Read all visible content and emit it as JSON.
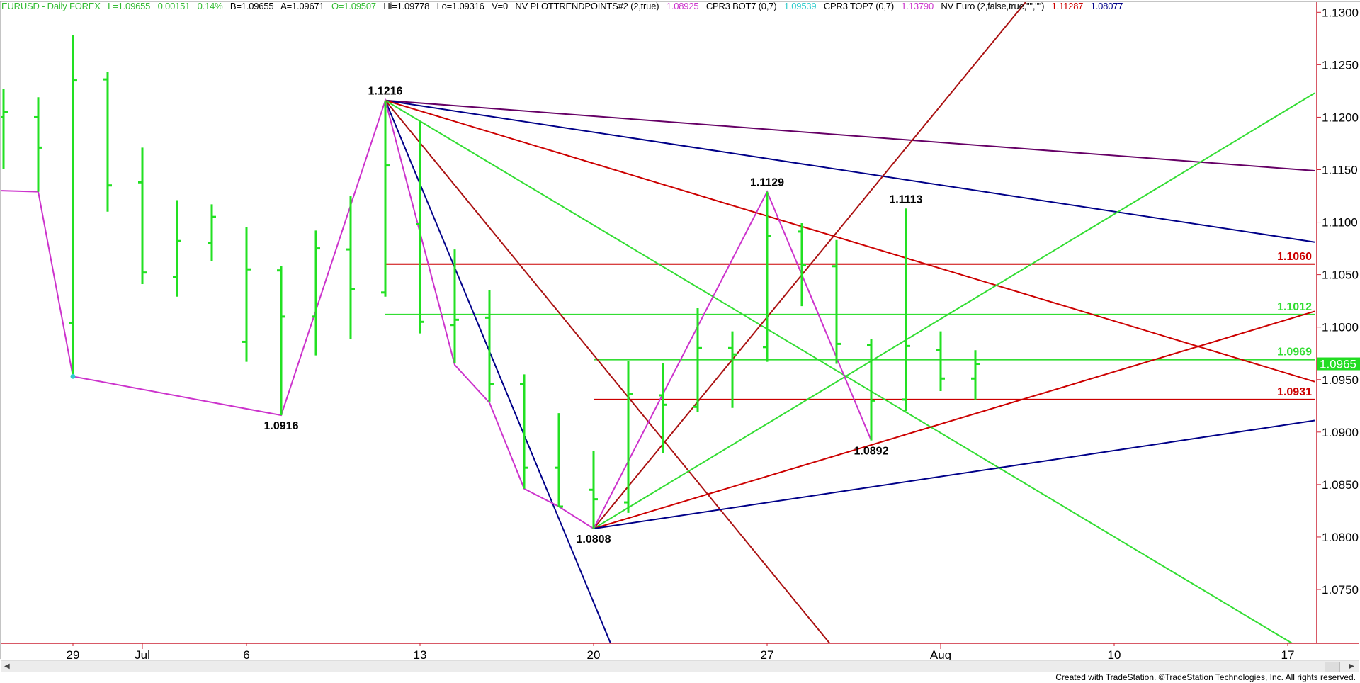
{
  "header": {
    "symbol_info": "EURUSD - Daily  FOREX",
    "last": "L=1.09655",
    "change": "0.00151",
    "change_pct": "0.14%",
    "bid": "B=1.09655",
    "ask": "A=1.09671",
    "open": "O=1.09507",
    "high": "Hi=1.09778",
    "low": "Lo=1.09316",
    "volume": "V=0",
    "ind1_name": "NV  PLOTTRENDPOINTS#2 (2,true)",
    "ind1_value": "1.08925",
    "ind2_name": "CPR3 BOT7 (0,7)",
    "ind2_value": "1.09539",
    "ind3_name": "CPR3 TOP7 (0,7)",
    "ind3_value": "1.13790",
    "ind4_name": "NV Euro (2,false,true,\"\",\"\")",
    "ind4_value1": "1.11287",
    "ind4_value2": "1.08077"
  },
  "colors": {
    "bar": "#22e022",
    "header_green": "#33bb33",
    "magenta": "#cc33cc",
    "cyan": "#33cccc",
    "red": "#cc0000",
    "dark_red": "#aa1111",
    "navy": "#000088",
    "purple": "#660066",
    "green_line": "#33dd33",
    "axis": "#cc2233",
    "price_tag_bg": "#22dd22"
  },
  "chart_data": {
    "type": "ohlc",
    "symbol": "EURUSD",
    "interval": "Daily",
    "dates": [
      "Jun 25",
      "Jun 26",
      "Jun 29",
      "Jun 30",
      "Jul 1",
      "Jul 2",
      "Jul 3",
      "Jul 6",
      "Jul 7",
      "Jul 8",
      "Jul 9",
      "Jul 10",
      "Jul 13",
      "Jul 14",
      "Jul 15",
      "Jul 16",
      "Jul 17",
      "Jul 20",
      "Jul 21",
      "Jul 22",
      "Jul 23",
      "Jul 24",
      "Jul 27",
      "Jul 28",
      "Jul 29",
      "Jul 30",
      "Jul 31",
      "Aug 3",
      "Aug 4"
    ],
    "bars": [
      {
        "o": 1.12,
        "h": 1.1227,
        "l": 1.1151,
        "c": 1.1205
      },
      {
        "o": 1.12,
        "h": 1.1219,
        "l": 1.1129,
        "c": 1.1171
      },
      {
        "o": 1.1004,
        "h": 1.1278,
        "l": 1.0953,
        "c": 1.1235
      },
      {
        "o": 1.1236,
        "h": 1.1243,
        "l": 1.111,
        "c": 1.1135
      },
      {
        "o": 1.1138,
        "h": 1.1171,
        "l": 1.1041,
        "c": 1.1052
      },
      {
        "o": 1.1048,
        "h": 1.1121,
        "l": 1.1029,
        "c": 1.1082
      },
      {
        "o": 1.108,
        "h": 1.1117,
        "l": 1.1063,
        "c": 1.1105
      },
      {
        "o": 1.0986,
        "h": 1.1095,
        "l": 1.0967,
        "c": 1.1055
      },
      {
        "o": 1.1054,
        "h": 1.1058,
        "l": 1.0916,
        "c": 1.101
      },
      {
        "o": 1.101,
        "h": 1.1092,
        "l": 1.0973,
        "c": 1.1075
      },
      {
        "o": 1.1074,
        "h": 1.1125,
        "l": 1.0989,
        "c": 1.1036
      },
      {
        "o": 1.1033,
        "h": 1.1216,
        "l": 1.1029,
        "c": 1.1154
      },
      {
        "o": 1.1098,
        "h": 1.1196,
        "l": 1.0994,
        "c": 1.1005
      },
      {
        "o": 1.1002,
        "h": 1.1074,
        "l": 1.0966,
        "c": 1.1007
      },
      {
        "o": 1.1009,
        "h": 1.1035,
        "l": 1.0929,
        "c": 1.0946
      },
      {
        "o": 1.0946,
        "h": 1.0955,
        "l": 1.0846,
        "c": 1.0866
      },
      {
        "o": 1.0866,
        "h": 1.0918,
        "l": 1.0829,
        "c": 1.0829
      },
      {
        "o": 1.0845,
        "h": 1.0882,
        "l": 1.0808,
        "c": 1.0836
      },
      {
        "o": 1.0833,
        "h": 1.0968,
        "l": 1.0823,
        "c": 1.0936
      },
      {
        "o": 1.0935,
        "h": 1.0966,
        "l": 1.088,
        "c": 1.0926
      },
      {
        "o": 1.0924,
        "h": 1.1018,
        "l": 1.0919,
        "c": 1.098
      },
      {
        "o": 1.098,
        "h": 1.0996,
        "l": 1.0923,
        "c": 1.0974
      },
      {
        "o": 1.0981,
        "h": 1.1129,
        "l": 1.0967,
        "c": 1.1087
      },
      {
        "o": 1.1091,
        "h": 1.1099,
        "l": 1.102,
        "c": 1.1059
      },
      {
        "o": 1.1058,
        "h": 1.1083,
        "l": 1.0965,
        "c": 1.0984
      },
      {
        "o": 1.0983,
        "h": 1.0989,
        "l": 1.0892,
        "c": 1.093
      },
      {
        "o": 1.0931,
        "h": 1.1113,
        "l": 1.092,
        "c": 1.0982
      },
      {
        "o": 1.0978,
        "h": 1.0996,
        "l": 1.0939,
        "c": 1.0951
      },
      {
        "o": 1.0951,
        "h": 1.0978,
        "l": 1.0931,
        "c": 1.0965
      }
    ],
    "ylim": [
      1.0699,
      1.1312
    ],
    "y_ticks": [
      "1.1300",
      "1.1250",
      "1.1200",
      "1.1150",
      "1.1100",
      "1.1050",
      "1.1000",
      "1.0950",
      "1.0900",
      "1.0850",
      "1.0800",
      "1.0750"
    ],
    "x_ticks": [
      {
        "label": "29",
        "date": "Jun 29"
      },
      {
        "label": "Jul",
        "date": "Jul 1"
      },
      {
        "label": "6",
        "date": "Jul 6"
      },
      {
        "label": "13",
        "date": "Jul 13"
      },
      {
        "label": "20",
        "date": "Jul 20"
      },
      {
        "label": "27",
        "date": "Jul 27"
      },
      {
        "label": "Aug",
        "date": "Aug 3"
      },
      {
        "label": "10",
        "date": "Aug 10"
      },
      {
        "label": "17",
        "date": "Aug 17"
      }
    ],
    "swing_line": [
      {
        "date": "Jun 24",
        "price": 1.113
      },
      {
        "date": "Jun 26",
        "price": 1.1129
      },
      {
        "date": "Jun 29",
        "price": 1.0953
      },
      {
        "date": "Jul 7",
        "price": 1.0916
      },
      {
        "date": "Jul 10",
        "price": 1.1216
      },
      {
        "date": "Jul 14",
        "price": 1.0964
      },
      {
        "date": "Jul 15",
        "price": 1.0928
      },
      {
        "date": "Jul 16",
        "price": 1.0846
      },
      {
        "date": "Jul 17",
        "price": 1.0829
      },
      {
        "date": "Jul 20",
        "price": 1.0808
      },
      {
        "date": "Jul 27",
        "price": 1.1129
      },
      {
        "date": "Jul 30",
        "price": 1.0892
      }
    ],
    "marker_point": {
      "date": "Jun 29",
      "price": 1.0953
    },
    "pivot_labels": [
      {
        "text": "1.1216",
        "date": "Jul 10",
        "price": 1.1216,
        "pos": "above"
      },
      {
        "text": "1.0916",
        "date": "Jul 7",
        "price": 1.0916,
        "pos": "below"
      },
      {
        "text": "1.0808",
        "date": "Jul 20",
        "price": 1.0808,
        "pos": "below"
      },
      {
        "text": "1.1129",
        "date": "Jul 27",
        "price": 1.1129,
        "pos": "above"
      },
      {
        "text": "1.1113",
        "date": "Jul 31",
        "price": 1.1113,
        "pos": "above"
      },
      {
        "text": "1.0892",
        "date": "Jul 30",
        "price": 1.0892,
        "pos": "below"
      }
    ],
    "trend_lines": [
      {
        "color": "purple",
        "from": {
          "date": "Jul 10",
          "price": 1.1216
        },
        "to_right_edge_price": 1.1149
      },
      {
        "color": "navy",
        "from": {
          "date": "Jul 10",
          "price": 1.1216
        },
        "to_right_edge_price": 1.1081
      },
      {
        "color": "red",
        "from": {
          "date": "Jul 10",
          "price": 1.1216
        },
        "to_right_edge_price": 1.0948
      },
      {
        "color": "green_line",
        "from": {
          "date": "Jul 10",
          "price": 1.1216
        },
        "slope_per_day": -0.00198
      },
      {
        "color": "navy",
        "from": {
          "date": "Jul 10",
          "price": 1.1216
        },
        "slope_per_day": -0.00797
      },
      {
        "color": "dark_red",
        "from": {
          "date": "Jul 10",
          "price": 1.1216
        },
        "slope_per_day": -0.00404
      },
      {
        "color": "dark_red",
        "from": {
          "date": "Jul 20",
          "price": 1.0808
        },
        "slope_per_day": 0.00403
      },
      {
        "color": "green_line",
        "from": {
          "date": "Jul 20",
          "price": 1.0808
        },
        "to_right_edge_price": 1.1223
      },
      {
        "color": "red",
        "from": {
          "date": "Jul 20",
          "price": 1.0808
        },
        "to_right_edge_price": 1.1015
      },
      {
        "color": "navy",
        "from": {
          "date": "Jul 20",
          "price": 1.0808
        },
        "to_right_edge_price": 1.0911
      }
    ],
    "levels": [
      {
        "label": "1.1060",
        "price": 1.106,
        "color": "red",
        "from_date": "Jul 10"
      },
      {
        "label": "1.1012",
        "price": 1.1012,
        "color": "green_line",
        "from_date": "Jul 10"
      },
      {
        "label": "1.0969",
        "price": 1.0969,
        "color": "green_line",
        "from_date": "Jul 20"
      },
      {
        "label": "1.0931",
        "price": 1.0931,
        "color": "red",
        "from_date": "Jul 20"
      }
    ],
    "last_price_tag": "1.0965",
    "last_price": 1.0965
  },
  "footer": "Created with TradeStation. ©TradeStation Technologies, Inc. All rights reserved."
}
